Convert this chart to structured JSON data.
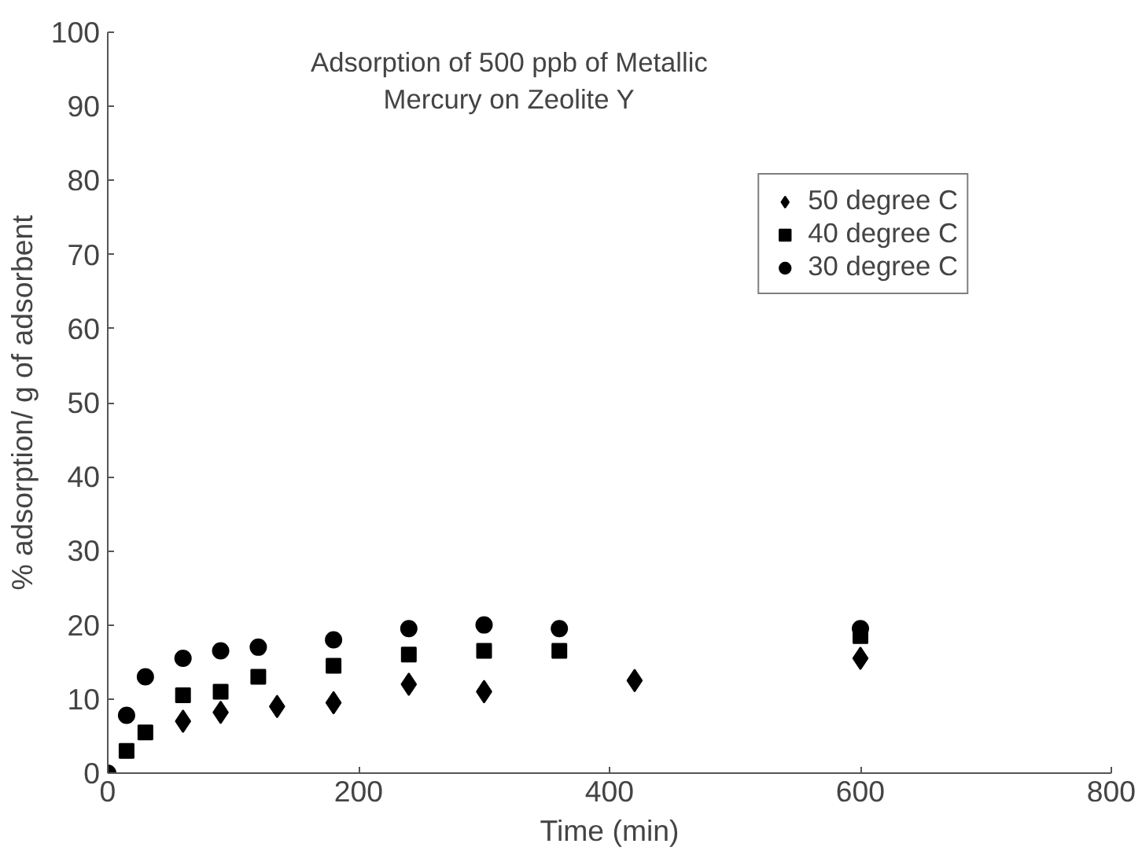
{
  "chart_data": {
    "type": "scatter",
    "title": "Adsorption of 500 ppb of Metallic\nMercury on Zeolite Y",
    "xlabel": "Time (min)",
    "ylabel": "% adsorption/ g of adsorbent",
    "xlim": [
      0,
      800
    ],
    "xticks": [
      0,
      200,
      400,
      600,
      800
    ],
    "ylim": [
      0,
      100
    ],
    "yticks": [
      0,
      10,
      20,
      30,
      40,
      50,
      60,
      70,
      80,
      90,
      100
    ],
    "grid": false,
    "legend": "top right",
    "series": [
      {
        "name": "50 degree C",
        "color": "#000000",
        "marker": "diamond",
        "x": [
          60,
          90,
          135,
          180,
          240,
          300,
          420,
          600
        ],
        "values": [
          7,
          8.2,
          9,
          9.5,
          12,
          11,
          12.5,
          15.5
        ]
      },
      {
        "name": "40 degree C",
        "color": "#000000",
        "marker": "square",
        "x": [
          15,
          30,
          60,
          90,
          120,
          180,
          240,
          300,
          360,
          600
        ],
        "values": [
          3,
          5.5,
          10.5,
          11,
          13,
          14.5,
          16,
          16.5,
          16.5,
          18.5
        ]
      },
      {
        "name": "30 degree C",
        "color": "#000000",
        "marker": "circle",
        "x": [
          0,
          15,
          30,
          60,
          90,
          120,
          180,
          240,
          300,
          360,
          600
        ],
        "values": [
          0,
          7.8,
          13,
          15.5,
          16.5,
          17,
          18,
          19.5,
          20,
          19.5,
          19.5
        ]
      }
    ]
  }
}
